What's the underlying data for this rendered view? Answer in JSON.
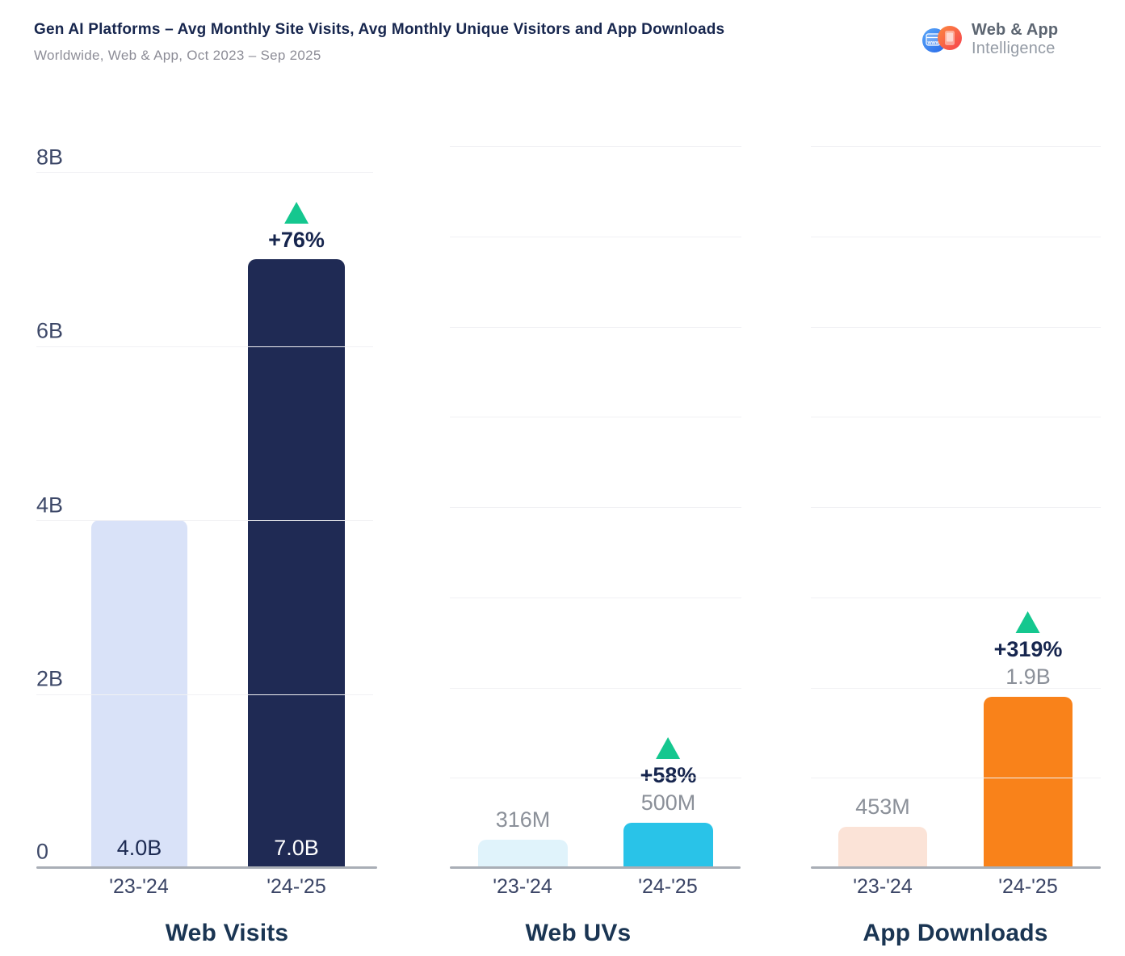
{
  "header": {
    "title": "Gen AI Platforms – Avg Monthly Site Visits, Avg Monthly Unique Visitors and App Downloads",
    "subtitle": "Worldwide, Web & App, Oct 2023 – Sep 2025"
  },
  "logo": {
    "line1": "Web & App",
    "line2": "Intelligence",
    "www_text": "www"
  },
  "colors": {
    "title_navy": "#17264e",
    "subtitle_gray": "#8d8d97",
    "axis_label": "#3d4868",
    "tick_label": "#3b4566",
    "panel_title": "#1a3553",
    "value_gray": "#8b9099",
    "change_navy": "#16254e",
    "increase_green": "#15c78f",
    "gridline": "#f1f1f4",
    "baseline_gray": "#a9aeb6",
    "logo_blue": "#2f7df6",
    "logo_red": "#f9564c",
    "logo_text": "#5c6571",
    "logo_text_light": "#949ba5"
  },
  "chart_data": {
    "type": "bar",
    "title": "Gen AI Platforms – Avg Monthly Site Visits, Avg Monthly Unique Visitors and App Downloads",
    "subtitle": "Worldwide, Web & App, Oct 2023 – Sep 2025",
    "categories": [
      "'23-'24",
      "'24-'25"
    ],
    "ylim": [
      0,
      8000000000
    ],
    "yaxis_ticks": [
      "8B",
      "6B",
      "4B",
      "2B",
      "0"
    ],
    "grid": true,
    "legend": "none",
    "panels": [
      {
        "name": "Web Visits",
        "gridline_step": 2000000000,
        "bars": [
          {
            "category": "'23-'24",
            "value": 4000000000,
            "label": "4.0B",
            "label_placement": "inside",
            "color": "#d9e2f8",
            "label_color": "#1c2a52"
          },
          {
            "category": "'24-'25",
            "value": 7000000000,
            "label": "7.0B",
            "label_placement": "inside",
            "color": "#1f2a54",
            "label_color": "#ffffff",
            "change": "+76%"
          }
        ]
      },
      {
        "name": "Web UVs",
        "gridline_step": 1000000000,
        "bars": [
          {
            "category": "'23-'24",
            "value": 316000000,
            "label": "316M",
            "label_placement": "above",
            "color": "#e0f3fb",
            "label_color": "#8b9099"
          },
          {
            "category": "'24-'25",
            "value": 500000000,
            "label": "500M",
            "label_placement": "above",
            "color": "#29c3e8",
            "label_color": "#8b9099",
            "change": "+58%"
          }
        ]
      },
      {
        "name": "App Downloads",
        "gridline_step": 1000000000,
        "bars": [
          {
            "category": "'23-'24",
            "value": 453000000,
            "label": "453M",
            "label_placement": "above",
            "color": "#fbe3d7",
            "label_color": "#8b9099"
          },
          {
            "category": "'24-'25",
            "value": 1900000000,
            "label": "1.9B",
            "label_placement": "above",
            "color": "#f9821a",
            "label_color": "#8b9099",
            "change": "+319%"
          }
        ]
      }
    ]
  }
}
